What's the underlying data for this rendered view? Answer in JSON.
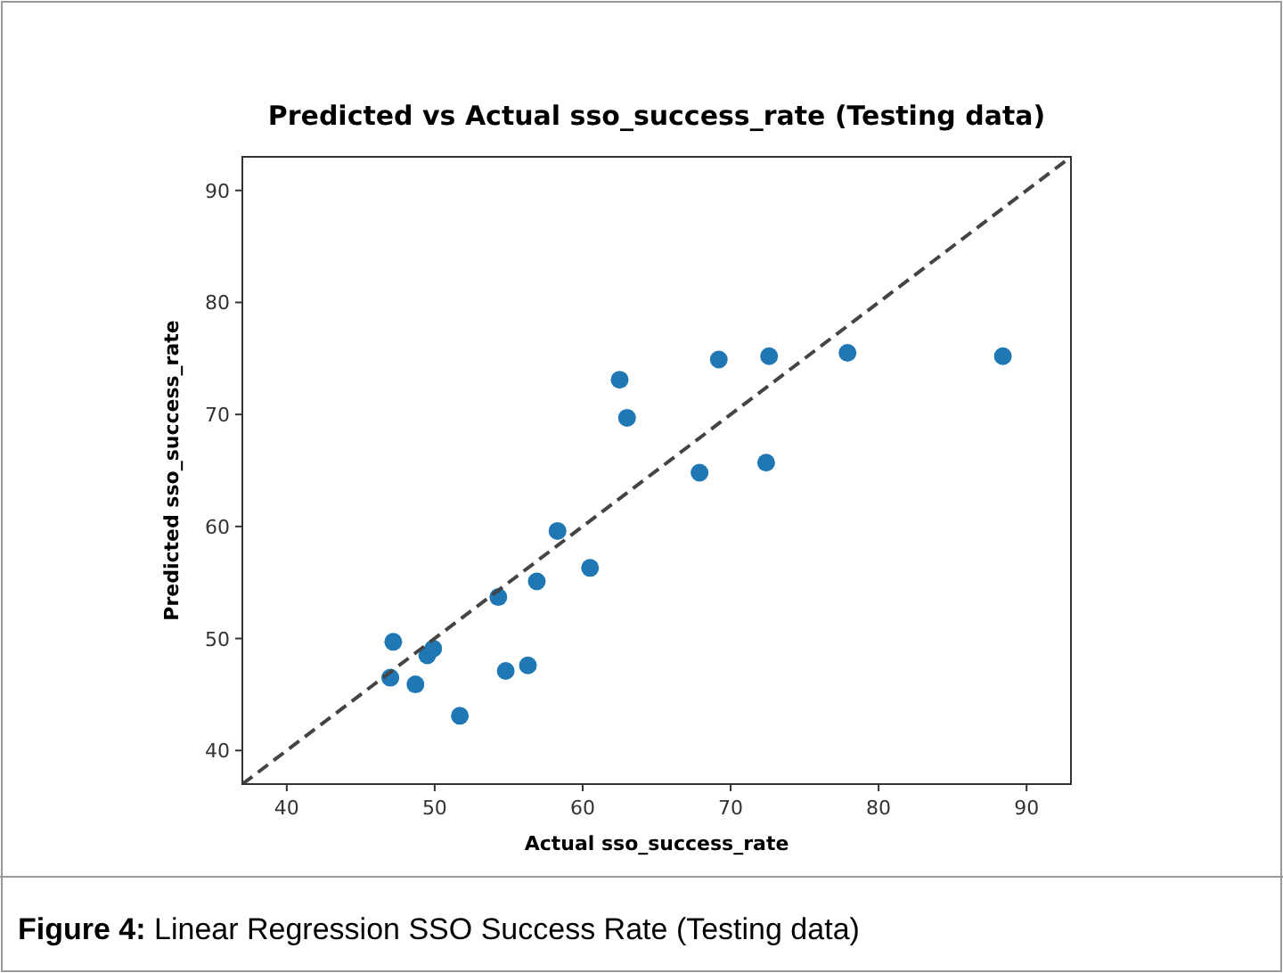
{
  "chart_data": {
    "type": "scatter",
    "title": "Predicted vs Actual sso_success_rate (Testing data)",
    "xlabel": "Actual sso_success_rate",
    "ylabel": "Predicted sso_success_rate",
    "annotations": [
      "Figure 4: Linear Regression SSO Success Rate (Testing data)"
    ],
    "xlim": [
      37,
      93
    ],
    "ylim": [
      37,
      93
    ],
    "xticks": [
      40,
      50,
      60,
      70,
      80,
      90
    ],
    "yticks": [
      40,
      50,
      60,
      70,
      80,
      90
    ],
    "grid": false,
    "marker": "circle",
    "series": [
      {
        "color": "#1f77b4",
        "x": [
          47.2,
          47.0,
          48.7,
          49.5,
          49.9,
          51.7,
          54.3,
          54.8,
          56.3,
          56.9,
          58.3,
          60.5,
          62.5,
          63.0,
          67.9,
          69.2,
          72.4,
          72.6,
          77.9,
          88.4
        ],
        "values": [
          49.7,
          46.5,
          45.9,
          48.5,
          49.1,
          43.1,
          53.7,
          47.1,
          47.6,
          55.1,
          59.6,
          56.3,
          73.1,
          69.7,
          64.8,
          74.9,
          65.7,
          75.2,
          75.5,
          75.2
        ]
      },
      {
        "type": "line",
        "color": "#444444",
        "line_style": "dashed",
        "marker": "none",
        "x": [
          37,
          93
        ],
        "values": [
          37,
          93
        ]
      }
    ]
  }
}
